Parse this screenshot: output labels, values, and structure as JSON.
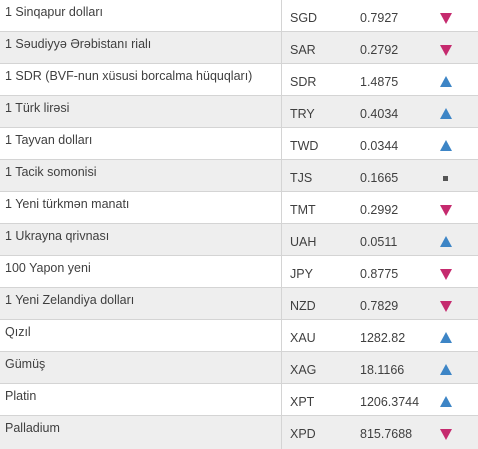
{
  "colors": {
    "down": "#c52a6e",
    "up": "#3d85c6",
    "same": "#555555",
    "row_alt": "#eeeeee"
  },
  "rows": [
    {
      "name": "1 Sinqapur dolları",
      "code": "SGD",
      "value": "0.7927",
      "trend": "down",
      "trend_icon": "triangle-down-icon"
    },
    {
      "name": "1 Səudiyyə Ərəbistanı rialı",
      "code": "SAR",
      "value": "0.2792",
      "trend": "down",
      "trend_icon": "triangle-down-icon"
    },
    {
      "name": "1 SDR (BVF-nun xüsusi borcalma hüquqları)",
      "code": "SDR",
      "value": "1.4875",
      "trend": "up",
      "trend_icon": "triangle-up-icon"
    },
    {
      "name": "1 Türk lirəsi",
      "code": "TRY",
      "value": "0.4034",
      "trend": "up",
      "trend_icon": "triangle-up-icon"
    },
    {
      "name": "1 Tayvan dolları",
      "code": "TWD",
      "value": "0.0344",
      "trend": "up",
      "trend_icon": "triangle-up-icon"
    },
    {
      "name": "1 Tacik somonisi",
      "code": "TJS",
      "value": "0.1665",
      "trend": "same",
      "trend_icon": "square-icon"
    },
    {
      "name": "1 Yeni türkmən manatı",
      "code": "TMT",
      "value": "0.2992",
      "trend": "down",
      "trend_icon": "triangle-down-icon"
    },
    {
      "name": "1 Ukrayna qrivnası",
      "code": "UAH",
      "value": "0.0511",
      "trend": "up",
      "trend_icon": "triangle-up-icon"
    },
    {
      "name": "100 Yapon yeni",
      "code": "JPY",
      "value": "0.8775",
      "trend": "down",
      "trend_icon": "triangle-down-icon"
    },
    {
      "name": "1 Yeni Zelandiya dolları",
      "code": "NZD",
      "value": "0.7829",
      "trend": "down",
      "trend_icon": "triangle-down-icon"
    },
    {
      "name": "Qızıl",
      "code": "XAU",
      "value": "1282.82",
      "trend": "up",
      "trend_icon": "triangle-up-icon"
    },
    {
      "name": "Gümüş",
      "code": "XAG",
      "value": "18.1166",
      "trend": "up",
      "trend_icon": "triangle-up-icon"
    },
    {
      "name": "Platin",
      "code": "XPT",
      "value": "1206.3744",
      "trend": "up",
      "trend_icon": "triangle-up-icon"
    },
    {
      "name": "Palladium",
      "code": "XPD",
      "value": "815.7688",
      "trend": "down",
      "trend_icon": "triangle-down-icon"
    }
  ]
}
